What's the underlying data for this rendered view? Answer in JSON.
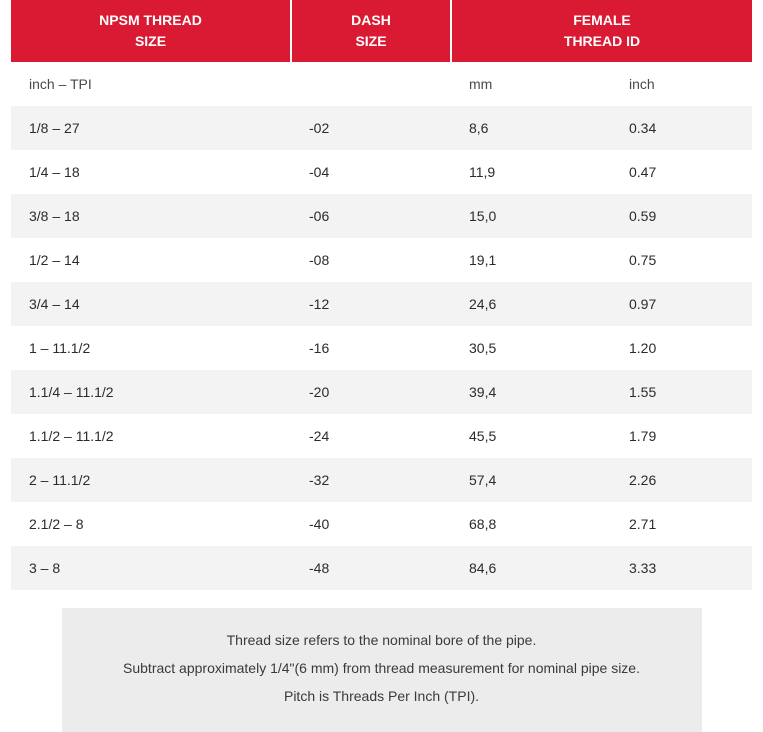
{
  "table": {
    "header_bg": "#da1a32",
    "headers": [
      {
        "line1": "NPSM THREAD",
        "line2": "SIZE"
      },
      {
        "line1": "DASH",
        "line2": "SIZE"
      },
      {
        "line1": "FEMALE",
        "line2": "THREAD ID"
      }
    ],
    "col_widths": [
      "280px",
      "160px",
      "160px",
      "141px"
    ],
    "subheader": {
      "npsm": "inch – TPI",
      "dash": "",
      "mm": "mm",
      "inch": "inch"
    },
    "rows": [
      {
        "npsm": "1/8 – 27",
        "dash": "-02",
        "mm": "8,6",
        "inch": "0.34"
      },
      {
        "npsm": "1/4 – 18",
        "dash": "-04",
        "mm": "11,9",
        "inch": "0.47"
      },
      {
        "npsm": "3/8 – 18",
        "dash": "-06",
        "mm": "15,0",
        "inch": "0.59"
      },
      {
        "npsm": "1/2 – 14",
        "dash": "-08",
        "mm": "19,1",
        "inch": "0.75"
      },
      {
        "npsm": "3/4 – 14",
        "dash": "-12",
        "mm": "24,6",
        "inch": "0.97"
      },
      {
        "npsm": "1 – 11.1/2",
        "dash": "-16",
        "mm": "30,5",
        "inch": "1.20"
      },
      {
        "npsm": "1.1/4 – 11.1/2",
        "dash": "-20",
        "mm": "39,4",
        "inch": "1.55"
      },
      {
        "npsm": "1.1/2 – 11.1/2",
        "dash": "-24",
        "mm": "45,5",
        "inch": "1.79"
      },
      {
        "npsm": "2 – 11.1/2",
        "dash": "-32",
        "mm": "57,4",
        "inch": "2.26"
      },
      {
        "npsm": "2.1/2 – 8",
        "dash": "-40",
        "mm": "68,8",
        "inch": "2.71"
      },
      {
        "npsm": "3 – 8",
        "dash": "-48",
        "mm": "84,6",
        "inch": "3.33"
      }
    ]
  },
  "footnote": {
    "line1": "Thread size refers to the nominal bore of the pipe.",
    "line2": "Subtract approximately 1/4\"(6 mm) from thread measurement for nominal pipe size.",
    "line3": "Pitch is Threads Per Inch (TPI)."
  }
}
